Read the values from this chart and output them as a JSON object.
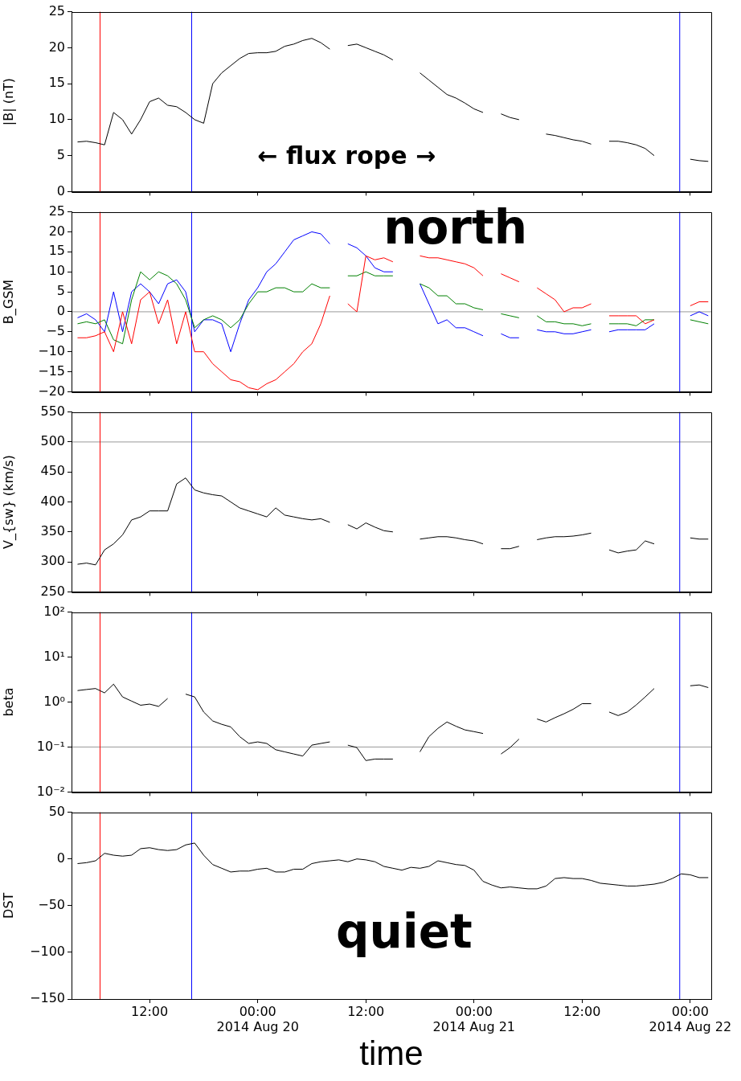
{
  "chart_data": [
    {
      "type": "line",
      "ylabel": "|B| (nT)",
      "tick_labels": "y",
      "x": [
        "2014-08-19T04:00",
        "2014-08-19T05:00",
        "2014-08-19T06:00",
        "2014-08-19T07:00",
        "2014-08-19T08:00",
        "2014-08-19T09:00",
        "2014-08-19T10:00",
        "2014-08-19T11:00",
        "2014-08-19T12:00",
        "2014-08-19T13:00",
        "2014-08-19T14:00",
        "2014-08-19T15:00",
        "2014-08-19T16:00",
        "2014-08-19T17:00",
        "2014-08-19T18:00",
        "2014-08-19T19:00",
        "2014-08-19T20:00",
        "2014-08-19T21:00",
        "2014-08-19T22:00",
        "2014-08-19T23:00",
        "2014-08-20T00:00",
        "2014-08-20T01:00",
        "2014-08-20T02:00",
        "2014-08-20T03:00",
        "2014-08-20T04:00",
        "2014-08-20T05:00",
        "2014-08-20T06:00",
        "2014-08-20T07:00",
        "2014-08-20T08:00",
        "2014-08-20T09:00",
        "2014-08-20T10:00",
        "2014-08-20T11:00",
        "2014-08-20T12:00",
        "2014-08-20T13:00",
        "2014-08-20T14:00",
        "2014-08-20T15:00",
        "2014-08-20T16:00",
        "2014-08-20T17:00",
        "2014-08-20T18:00",
        "2014-08-20T19:00",
        "2014-08-20T20:00",
        "2014-08-20T21:00",
        "2014-08-20T22:00",
        "2014-08-20T23:00",
        "2014-08-21T00:00",
        "2014-08-21T01:00",
        "2014-08-21T02:00",
        "2014-08-21T03:00",
        "2014-08-21T04:00",
        "2014-08-21T05:00",
        "2014-08-21T06:00",
        "2014-08-21T07:00",
        "2014-08-21T08:00",
        "2014-08-21T09:00",
        "2014-08-21T10:00",
        "2014-08-21T11:00",
        "2014-08-21T12:00",
        "2014-08-21T13:00",
        "2014-08-21T14:00",
        "2014-08-21T15:00",
        "2014-08-21T16:00",
        "2014-08-21T17:00",
        "2014-08-21T18:00",
        "2014-08-21T19:00",
        "2014-08-21T20:00",
        "2014-08-21T21:00",
        "2014-08-21T22:00",
        "2014-08-21T23:00",
        "2014-08-22T00:00",
        "2014-08-22T01:00",
        "2014-08-22T02:00"
      ],
      "series": [
        {
          "color": "#000000",
          "values": [
            6.9,
            7.0,
            6.8,
            6.5,
            11,
            10,
            8,
            10,
            12.5,
            13,
            12,
            11.8,
            11,
            10,
            9.5,
            15,
            16.5,
            17.5,
            18.5,
            19.2,
            19.3,
            19.3,
            19.5,
            20.2,
            20.5,
            21,
            21.3,
            20.7,
            19.8,
            null,
            20.3,
            20.5,
            20,
            19.5,
            19,
            18.3,
            null,
            null,
            16.5,
            15.5,
            14.5,
            13.5,
            13,
            12.3,
            11.5,
            11,
            null,
            10.8,
            10.3,
            10,
            null,
            null,
            8,
            7.8,
            7.5,
            7.2,
            7,
            6.6,
            null,
            7,
            7,
            6.8,
            6.5,
            6,
            5,
            null,
            null,
            null,
            4.5,
            4.3,
            4.2
          ]
        }
      ],
      "xlim": [
        "2014-08-19T03:20",
        "2014-08-22T02:20"
      ],
      "xticks": [
        {
          "value": "2014-08-19T12:00",
          "label": null
        },
        {
          "value": "2014-08-20T00:00",
          "label": null
        },
        {
          "value": "2014-08-20T12:00",
          "label": null
        },
        {
          "value": "2014-08-21T00:00",
          "label": null
        },
        {
          "value": "2014-08-21T12:00",
          "label": null
        },
        {
          "value": "2014-08-22T00:00",
          "label": null
        }
      ],
      "ylim": [
        0,
        25
      ],
      "yticks": [
        0,
        5,
        10,
        15,
        20,
        25
      ],
      "ref_lines": [
        {
          "axis": "x",
          "value": "2014-08-19T06:30",
          "color": "#ff0000"
        },
        {
          "axis": "x",
          "value": "2014-08-19T16:40",
          "color": "#0000ff"
        },
        {
          "axis": "x",
          "value": "2014-08-21T22:50",
          "color": "#0000ff"
        }
      ],
      "annotations": [
        "← flux rope →"
      ]
    },
    {
      "type": "line",
      "ylabel": "B_GSM",
      "tick_labels": "y",
      "x": [
        "2014-08-19T04:00",
        "2014-08-19T05:00",
        "2014-08-19T06:00",
        "2014-08-19T07:00",
        "2014-08-19T08:00",
        "2014-08-19T09:00",
        "2014-08-19T10:00",
        "2014-08-19T11:00",
        "2014-08-19T12:00",
        "2014-08-19T13:00",
        "2014-08-19T14:00",
        "2014-08-19T15:00",
        "2014-08-19T16:00",
        "2014-08-19T17:00",
        "2014-08-19T18:00",
        "2014-08-19T19:00",
        "2014-08-19T20:00",
        "2014-08-19T21:00",
        "2014-08-19T22:00",
        "2014-08-19T23:00",
        "2014-08-20T00:00",
        "2014-08-20T01:00",
        "2014-08-20T02:00",
        "2014-08-20T03:00",
        "2014-08-20T04:00",
        "2014-08-20T05:00",
        "2014-08-20T06:00",
        "2014-08-20T07:00",
        "2014-08-20T08:00",
        "2014-08-20T09:00",
        "2014-08-20T10:00",
        "2014-08-20T11:00",
        "2014-08-20T12:00",
        "2014-08-20T13:00",
        "2014-08-20T14:00",
        "2014-08-20T15:00",
        "2014-08-20T16:00",
        "2014-08-20T17:00",
        "2014-08-20T18:00",
        "2014-08-20T19:00",
        "2014-08-20T20:00",
        "2014-08-20T21:00",
        "2014-08-20T22:00",
        "2014-08-20T23:00",
        "2014-08-21T00:00",
        "2014-08-21T01:00",
        "2014-08-21T02:00",
        "2014-08-21T03:00",
        "2014-08-21T04:00",
        "2014-08-21T05:00",
        "2014-08-21T06:00",
        "2014-08-21T07:00",
        "2014-08-21T08:00",
        "2014-08-21T09:00",
        "2014-08-21T10:00",
        "2014-08-21T11:00",
        "2014-08-21T12:00",
        "2014-08-21T13:00",
        "2014-08-21T14:00",
        "2014-08-21T15:00",
        "2014-08-21T16:00",
        "2014-08-21T17:00",
        "2014-08-21T18:00",
        "2014-08-21T19:00",
        "2014-08-21T20:00",
        "2014-08-21T21:00",
        "2014-08-21T22:00",
        "2014-08-21T23:00",
        "2014-08-22T00:00",
        "2014-08-22T01:00",
        "2014-08-22T02:00"
      ],
      "series": [
        {
          "color": "#ff0000",
          "values": [
            -6.5,
            -6.5,
            -6,
            -5,
            -10,
            0,
            -8,
            3,
            5,
            -3,
            3,
            -8,
            0,
            -10,
            -10,
            -13,
            -15,
            -17,
            -17.5,
            -19,
            -19.5,
            -18,
            -17,
            -15,
            -13,
            -10,
            -8,
            -3,
            4,
            null,
            2,
            0,
            14,
            13,
            13.5,
            12.5,
            null,
            null,
            14,
            13.5,
            13.5,
            13,
            12.5,
            12,
            11,
            9,
            null,
            9.5,
            8.5,
            7.5,
            null,
            6,
            4.5,
            3,
            0,
            1,
            1,
            2,
            null,
            -1,
            -1,
            -1,
            -1,
            -3,
            -2,
            null,
            null,
            null,
            1.5,
            2.5,
            2.5
          ]
        },
        {
          "color": "#008000",
          "values": [
            -3,
            -2.5,
            -3,
            -2,
            -7,
            -8,
            3,
            10,
            8,
            10,
            9,
            7,
            3,
            -4,
            -2,
            -1,
            -2,
            -4,
            -2,
            2,
            5,
            5,
            6,
            6,
            5,
            5,
            7,
            6,
            6,
            null,
            9,
            9,
            10,
            9,
            9,
            9,
            null,
            null,
            7,
            6,
            4,
            4,
            2,
            2,
            1,
            0.5,
            null,
            -0.5,
            -1,
            -1.5,
            null,
            -1,
            -2.5,
            -2.5,
            -3,
            -3,
            -3.5,
            -3,
            null,
            -3,
            -3,
            -3,
            -3.5,
            -2,
            -2,
            null,
            null,
            null,
            -2,
            -2.5,
            -3
          ]
        },
        {
          "color": "#0000ff",
          "values": [
            -1.5,
            -0.5,
            -2,
            -5,
            5,
            -5,
            5,
            7,
            5,
            2,
            7,
            8,
            5,
            -5,
            -2,
            -2,
            -3,
            -10,
            -3,
            3,
            6,
            10,
            12,
            15,
            18,
            19,
            20,
            19.5,
            17,
            null,
            17,
            16,
            14,
            11,
            10,
            10,
            null,
            null,
            7,
            2,
            -3,
            -2,
            -4,
            -4,
            -5,
            -6,
            null,
            -5.5,
            -6.5,
            -6.5,
            null,
            -4.5,
            -5,
            -5,
            -5.5,
            -5.5,
            -5,
            -4.5,
            null,
            -5,
            -4.5,
            -4.5,
            -4.5,
            -4.5,
            -3,
            null,
            null,
            null,
            -1,
            0,
            -1
          ]
        }
      ],
      "xlim": [
        "2014-08-19T03:20",
        "2014-08-22T02:20"
      ],
      "xticks": [
        {
          "value": "2014-08-19T12:00",
          "label": null
        },
        {
          "value": "2014-08-20T00:00",
          "label": null
        },
        {
          "value": "2014-08-20T12:00",
          "label": null
        },
        {
          "value": "2014-08-21T00:00",
          "label": null
        },
        {
          "value": "2014-08-21T12:00",
          "label": null
        },
        {
          "value": "2014-08-22T00:00",
          "label": null
        }
      ],
      "ylim": [
        -20,
        25
      ],
      "yticks": [
        {
          "value": -20,
          "label": "−20"
        },
        {
          "value": -15,
          "label": "−15"
        },
        {
          "value": -10,
          "label": "−10"
        },
        {
          "value": -5,
          "label": "−5"
        },
        0,
        5,
        10,
        15,
        20,
        25
      ],
      "ref_lines": [
        {
          "axis": "y",
          "value": 0,
          "color": "#999999"
        },
        {
          "axis": "x",
          "value": "2014-08-19T06:30",
          "color": "#ff0000"
        },
        {
          "axis": "x",
          "value": "2014-08-19T16:40",
          "color": "#0000ff"
        },
        {
          "axis": "x",
          "value": "2014-08-21T22:50",
          "color": "#0000ff"
        }
      ],
      "annotations": [
        "north"
      ]
    },
    {
      "type": "line",
      "ylabel": "V_{sw} (km/s)",
      "tick_labels": "y",
      "x": [
        "2014-08-19T04:00",
        "2014-08-19T05:00",
        "2014-08-19T06:00",
        "2014-08-19T07:00",
        "2014-08-19T08:00",
        "2014-08-19T09:00",
        "2014-08-19T10:00",
        "2014-08-19T11:00",
        "2014-08-19T12:00",
        "2014-08-19T13:00",
        "2014-08-19T14:00",
        "2014-08-19T15:00",
        "2014-08-19T16:00",
        "2014-08-19T17:00",
        "2014-08-19T18:00",
        "2014-08-19T19:00",
        "2014-08-19T20:00",
        "2014-08-19T21:00",
        "2014-08-19T22:00",
        "2014-08-19T23:00",
        "2014-08-20T00:00",
        "2014-08-20T01:00",
        "2014-08-20T02:00",
        "2014-08-20T03:00",
        "2014-08-20T04:00",
        "2014-08-20T05:00",
        "2014-08-20T06:00",
        "2014-08-20T07:00",
        "2014-08-20T08:00",
        "2014-08-20T09:00",
        "2014-08-20T10:00",
        "2014-08-20T11:00",
        "2014-08-20T12:00",
        "2014-08-20T13:00",
        "2014-08-20T14:00",
        "2014-08-20T15:00",
        "2014-08-20T16:00",
        "2014-08-20T17:00",
        "2014-08-20T18:00",
        "2014-08-20T19:00",
        "2014-08-20T20:00",
        "2014-08-20T21:00",
        "2014-08-20T22:00",
        "2014-08-20T23:00",
        "2014-08-21T00:00",
        "2014-08-21T01:00",
        "2014-08-21T02:00",
        "2014-08-21T03:00",
        "2014-08-21T04:00",
        "2014-08-21T05:00",
        "2014-08-21T06:00",
        "2014-08-21T07:00",
        "2014-08-21T08:00",
        "2014-08-21T09:00",
        "2014-08-21T10:00",
        "2014-08-21T11:00",
        "2014-08-21T12:00",
        "2014-08-21T13:00",
        "2014-08-21T14:00",
        "2014-08-21T15:00",
        "2014-08-21T16:00",
        "2014-08-21T17:00",
        "2014-08-21T18:00",
        "2014-08-21T19:00",
        "2014-08-21T20:00",
        "2014-08-21T21:00",
        "2014-08-21T22:00",
        "2014-08-21T23:00",
        "2014-08-22T00:00",
        "2014-08-22T01:00",
        "2014-08-22T02:00"
      ],
      "series": [
        {
          "color": "#000000",
          "values": [
            296,
            298,
            295,
            320,
            330,
            345,
            370,
            375,
            385,
            385,
            385,
            430,
            440,
            420,
            415,
            412,
            410,
            400,
            390,
            385,
            380,
            375,
            390,
            378,
            375,
            372,
            370,
            372,
            366,
            null,
            362,
            355,
            365,
            358,
            352,
            350,
            null,
            null,
            338,
            340,
            342,
            342,
            340,
            337,
            335,
            330,
            null,
            322,
            322,
            326,
            null,
            337,
            340,
            342,
            342,
            343,
            345,
            348,
            null,
            320,
            315,
            318,
            320,
            335,
            330,
            null,
            null,
            null,
            340,
            338,
            338
          ]
        }
      ],
      "xlim": [
        "2014-08-19T03:20",
        "2014-08-22T02:20"
      ],
      "xticks": [
        {
          "value": "2014-08-19T12:00",
          "label": null
        },
        {
          "value": "2014-08-20T00:00",
          "label": null
        },
        {
          "value": "2014-08-20T12:00",
          "label": null
        },
        {
          "value": "2014-08-21T00:00",
          "label": null
        },
        {
          "value": "2014-08-21T12:00",
          "label": null
        },
        {
          "value": "2014-08-22T00:00",
          "label": null
        }
      ],
      "ylim": [
        250,
        550
      ],
      "yticks": [
        250,
        300,
        350,
        400,
        450,
        500,
        550
      ],
      "ref_lines": [
        {
          "axis": "y",
          "value": 500,
          "color": "#999999"
        },
        {
          "axis": "x",
          "value": "2014-08-19T06:30",
          "color": "#ff0000"
        },
        {
          "axis": "x",
          "value": "2014-08-19T16:40",
          "color": "#0000ff"
        },
        {
          "axis": "x",
          "value": "2014-08-21T22:50",
          "color": "#0000ff"
        }
      ]
    },
    {
      "type": "line",
      "ylabel": "beta",
      "tick_labels": "y",
      "log": "y",
      "x": [
        "2014-08-19T04:00",
        "2014-08-19T05:00",
        "2014-08-19T06:00",
        "2014-08-19T07:00",
        "2014-08-19T08:00",
        "2014-08-19T09:00",
        "2014-08-19T10:00",
        "2014-08-19T11:00",
        "2014-08-19T12:00",
        "2014-08-19T13:00",
        "2014-08-19T14:00",
        "2014-08-19T15:00",
        "2014-08-19T16:00",
        "2014-08-19T17:00",
        "2014-08-19T18:00",
        "2014-08-19T19:00",
        "2014-08-19T20:00",
        "2014-08-19T21:00",
        "2014-08-19T22:00",
        "2014-08-19T23:00",
        "2014-08-20T00:00",
        "2014-08-20T01:00",
        "2014-08-20T02:00",
        "2014-08-20T03:00",
        "2014-08-20T04:00",
        "2014-08-20T05:00",
        "2014-08-20T06:00",
        "2014-08-20T07:00",
        "2014-08-20T08:00",
        "2014-08-20T09:00",
        "2014-08-20T10:00",
        "2014-08-20T11:00",
        "2014-08-20T12:00",
        "2014-08-20T13:00",
        "2014-08-20T14:00",
        "2014-08-20T15:00",
        "2014-08-20T16:00",
        "2014-08-20T17:00",
        "2014-08-20T18:00",
        "2014-08-20T19:00",
        "2014-08-20T20:00",
        "2014-08-20T21:00",
        "2014-08-20T22:00",
        "2014-08-20T23:00",
        "2014-08-21T00:00",
        "2014-08-21T01:00",
        "2014-08-21T02:00",
        "2014-08-21T03:00",
        "2014-08-21T04:00",
        "2014-08-21T05:00",
        "2014-08-21T06:00",
        "2014-08-21T07:00",
        "2014-08-21T08:00",
        "2014-08-21T09:00",
        "2014-08-21T10:00",
        "2014-08-21T11:00",
        "2014-08-21T12:00",
        "2014-08-21T13:00",
        "2014-08-21T14:00",
        "2014-08-21T15:00",
        "2014-08-21T16:00",
        "2014-08-21T17:00",
        "2014-08-21T18:00",
        "2014-08-21T19:00",
        "2014-08-21T20:00",
        "2014-08-21T21:00",
        "2014-08-21T22:00",
        "2014-08-21T23:00",
        "2014-08-22T00:00",
        "2014-08-22T01:00",
        "2014-08-22T02:00"
      ],
      "series": [
        {
          "color": "#000000",
          "values": [
            1.8,
            1.9,
            2,
            1.6,
            2.5,
            1.3,
            1.05,
            0.85,
            0.9,
            0.8,
            1.2,
            null,
            1.5,
            1.3,
            0.6,
            0.38,
            0.32,
            0.28,
            0.17,
            0.12,
            0.13,
            0.12,
            0.087,
            0.078,
            0.07,
            0.063,
            0.11,
            0.12,
            0.13,
            null,
            0.11,
            0.097,
            0.05,
            0.054,
            0.054,
            0.054,
            null,
            null,
            0.078,
            0.17,
            0.26,
            0.36,
            0.29,
            0.24,
            0.22,
            0.2,
            null,
            0.07,
            0.097,
            0.15,
            null,
            0.42,
            0.36,
            0.45,
            0.55,
            0.69,
            0.92,
            0.92,
            null,
            0.6,
            0.5,
            0.6,
            0.86,
            1.3,
            2,
            null,
            null,
            null,
            2.3,
            2.4,
            2.1
          ]
        }
      ],
      "xlim": [
        "2014-08-19T03:20",
        "2014-08-22T02:20"
      ],
      "xticks": [
        {
          "value": "2014-08-19T12:00",
          "label": null
        },
        {
          "value": "2014-08-20T00:00",
          "label": null
        },
        {
          "value": "2014-08-20T12:00",
          "label": null
        },
        {
          "value": "2014-08-21T00:00",
          "label": null
        },
        {
          "value": "2014-08-21T12:00",
          "label": null
        },
        {
          "value": "2014-08-22T00:00",
          "label": null
        }
      ],
      "ylim": [
        0.01,
        100
      ],
      "yticks": [
        {
          "value": 0.01,
          "label": "10⁻²"
        },
        {
          "value": 0.1,
          "label": "10⁻¹"
        },
        {
          "value": 1,
          "label": "10⁰"
        },
        {
          "value": 10,
          "label": "10¹"
        },
        {
          "value": 100,
          "label": "10²"
        }
      ],
      "ref_lines": [
        {
          "axis": "y",
          "value": 0.1,
          "color": "#999999"
        },
        {
          "axis": "x",
          "value": "2014-08-19T06:30",
          "color": "#ff0000"
        },
        {
          "axis": "x",
          "value": "2014-08-19T16:40",
          "color": "#0000ff"
        },
        {
          "axis": "x",
          "value": "2014-08-21T22:50",
          "color": "#0000ff"
        }
      ]
    },
    {
      "type": "line",
      "ylabel": "DST",
      "xlabel": "time",
      "x": [
        "2014-08-19T04:00",
        "2014-08-19T05:00",
        "2014-08-19T06:00",
        "2014-08-19T07:00",
        "2014-08-19T08:00",
        "2014-08-19T09:00",
        "2014-08-19T10:00",
        "2014-08-19T11:00",
        "2014-08-19T12:00",
        "2014-08-19T13:00",
        "2014-08-19T14:00",
        "2014-08-19T15:00",
        "2014-08-19T16:00",
        "2014-08-19T17:00",
        "2014-08-19T18:00",
        "2014-08-19T19:00",
        "2014-08-19T20:00",
        "2014-08-19T21:00",
        "2014-08-19T22:00",
        "2014-08-19T23:00",
        "2014-08-20T00:00",
        "2014-08-20T01:00",
        "2014-08-20T02:00",
        "2014-08-20T03:00",
        "2014-08-20T04:00",
        "2014-08-20T05:00",
        "2014-08-20T06:00",
        "2014-08-20T07:00",
        "2014-08-20T08:00",
        "2014-08-20T09:00",
        "2014-08-20T10:00",
        "2014-08-20T11:00",
        "2014-08-20T12:00",
        "2014-08-20T13:00",
        "2014-08-20T14:00",
        "2014-08-20T15:00",
        "2014-08-20T16:00",
        "2014-08-20T17:00",
        "2014-08-20T18:00",
        "2014-08-20T19:00",
        "2014-08-20T20:00",
        "2014-08-20T21:00",
        "2014-08-20T22:00",
        "2014-08-20T23:00",
        "2014-08-21T00:00",
        "2014-08-21T01:00",
        "2014-08-21T02:00",
        "2014-08-21T03:00",
        "2014-08-21T04:00",
        "2014-08-21T05:00",
        "2014-08-21T06:00",
        "2014-08-21T07:00",
        "2014-08-21T08:00",
        "2014-08-21T09:00",
        "2014-08-21T10:00",
        "2014-08-21T11:00",
        "2014-08-21T12:00",
        "2014-08-21T13:00",
        "2014-08-21T14:00",
        "2014-08-21T15:00",
        "2014-08-21T16:00",
        "2014-08-21T17:00",
        "2014-08-21T18:00",
        "2014-08-21T19:00",
        "2014-08-21T20:00",
        "2014-08-21T21:00",
        "2014-08-21T22:00",
        "2014-08-21T23:00",
        "2014-08-22T00:00",
        "2014-08-22T01:00",
        "2014-08-22T02:00"
      ],
      "series": [
        {
          "color": "#000000",
          "values": [
            -5,
            -4,
            -2,
            6,
            4,
            3,
            4,
            11,
            12,
            10,
            9,
            10,
            15,
            17,
            4,
            -6,
            -10,
            -14,
            -13,
            -13,
            -11,
            -10,
            -14,
            -14,
            -11,
            -11,
            -5,
            -3,
            -2,
            -1,
            -3,
            0,
            -1,
            -3,
            -8,
            -10,
            -12,
            -9,
            -10,
            -8,
            -2,
            -4,
            -6,
            -7,
            -12,
            -24,
            -28,
            -31,
            -30,
            -31,
            -32,
            -32,
            -29,
            -21,
            -20,
            -21,
            -21,
            -23,
            -26,
            -27,
            -28,
            -29,
            -29,
            -28,
            -27,
            -25,
            -21,
            -16,
            -17,
            -20,
            -20
          ]
        }
      ],
      "xlim": [
        "2014-08-19T03:20",
        "2014-08-22T02:20"
      ],
      "xticks": [
        {
          "value": "2014-08-19T12:00",
          "label": "12:00"
        },
        {
          "value": "2014-08-20T00:00",
          "label": "00:00\n2014 Aug 20"
        },
        {
          "value": "2014-08-20T12:00",
          "label": "12:00"
        },
        {
          "value": "2014-08-21T00:00",
          "label": "00:00\n2014 Aug 21"
        },
        {
          "value": "2014-08-21T12:00",
          "label": "12:00"
        },
        {
          "value": "2014-08-22T00:00",
          "label": "00:00\n2014 Aug 22"
        }
      ],
      "ylim": [
        -150,
        50
      ],
      "yticks": [
        {
          "value": -150,
          "label": "−150"
        },
        {
          "value": -100,
          "label": "−100"
        },
        {
          "value": -50,
          "label": "−50"
        },
        0,
        50
      ],
      "ref_lines": [
        {
          "axis": "x",
          "value": "2014-08-19T06:30",
          "color": "#ff0000"
        },
        {
          "axis": "x",
          "value": "2014-08-19T16:40",
          "color": "#0000ff"
        },
        {
          "axis": "x",
          "value": "2014-08-21T22:50",
          "color": "#0000ff"
        }
      ],
      "annotations": [
        "quiet"
      ]
    }
  ]
}
